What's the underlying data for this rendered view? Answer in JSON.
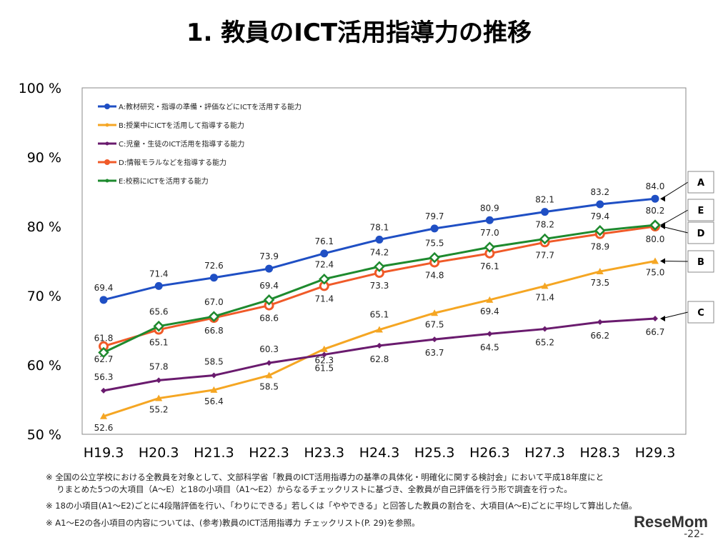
{
  "title": "1. 教員のICT活用指導力の推移",
  "chart_data": {
    "type": "line",
    "title": "1. 教員のICT活用指導力の推移",
    "categories": [
      "H19.3",
      "H20.3",
      "H21.3",
      "H22.3",
      "H23.3",
      "H24.3",
      "H25.3",
      "H26.3",
      "H27.3",
      "H28.3",
      "H29.3"
    ],
    "ylim": [
      50,
      100
    ],
    "yticks": [
      50,
      60,
      70,
      80,
      90,
      100
    ],
    "ytick_labels": [
      "50 %",
      "60 %",
      "70 %",
      "80 %",
      "90 %",
      "100 %"
    ],
    "grid": false,
    "legend_position": "top-left",
    "series": [
      {
        "key": "A",
        "name": "A:教材研究・指導の準備・評価などにICTを活用する能力",
        "color": "#1f4fc4",
        "marker": "circle",
        "values": [
          69.4,
          71.4,
          72.6,
          73.9,
          76.1,
          78.1,
          79.7,
          80.9,
          82.1,
          83.2,
          84.0
        ]
      },
      {
        "key": "B",
        "name": "B:授業中にICTを活用して指導する能力",
        "color": "#f5a623",
        "marker": "triangle",
        "values": [
          52.6,
          55.2,
          56.4,
          58.5,
          62.3,
          65.1,
          67.5,
          69.4,
          71.4,
          73.5,
          75.0
        ]
      },
      {
        "key": "C",
        "name": "C:児童・生徒のICT活用を指導する能力",
        "color": "#6a1b6e",
        "marker": "diamond",
        "values": [
          56.3,
          57.8,
          58.5,
          60.3,
          61.5,
          62.8,
          63.7,
          64.5,
          65.2,
          66.2,
          66.7
        ]
      },
      {
        "key": "D",
        "name": "D:情報モラルなどを指導する能力",
        "color": "#f05a28",
        "marker": "open-circle",
        "values": [
          62.7,
          65.1,
          66.8,
          68.6,
          71.4,
          73.3,
          74.8,
          76.1,
          77.7,
          78.9,
          80.0
        ]
      },
      {
        "key": "E",
        "name": "E:校務にICTを活用する能力",
        "color": "#1e8a2e",
        "marker": "open-diamond",
        "values": [
          61.8,
          65.6,
          67.0,
          69.4,
          72.4,
          74.2,
          75.5,
          77.0,
          78.2,
          79.4,
          80.2
        ]
      }
    ],
    "end_callouts": [
      "A",
      "E",
      "D",
      "B",
      "C"
    ]
  },
  "notes": [
    "※ 全国の公立学校における全教員を対象として、文部科学省「教員のICT活用指導力の基準の具体化・明確化に関する検討会」において平成18年度にと",
    "　 りまとめた5つの大項目（A～E）と18の小項目（A1～E2）からなるチェックリストに基づき、全教員が自己評価を行う形で調査を行った。",
    "※ 18の小項目(A1～E2)ごとに4段階評価を行い、「わりにできる」若しくは「ややできる」と回答した教員の割合を、大項目(A～E)ごとに平均して算出した値。",
    "※ A1～E2の各小項目の内容については、(参考)教員のICT活用指導力 チェックリスト(P. 29)を参照。"
  ],
  "logo": "ReseMom",
  "page_number": "-22-"
}
